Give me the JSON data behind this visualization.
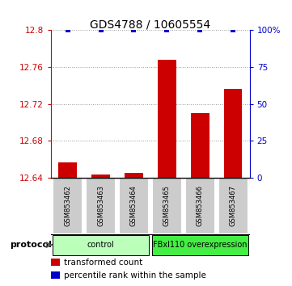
{
  "title": "GDS4788 / 10605554",
  "samples": [
    "GSM853462",
    "GSM853463",
    "GSM853464",
    "GSM853465",
    "GSM853466",
    "GSM853467"
  ],
  "transformed_count": [
    12.657,
    12.643,
    12.645,
    12.768,
    12.71,
    12.736
  ],
  "percentile_rank": [
    100,
    100,
    100,
    100,
    100,
    100
  ],
  "ylim_left": [
    12.64,
    12.8
  ],
  "ylim_right": [
    0,
    100
  ],
  "yticks_left": [
    12.64,
    12.68,
    12.72,
    12.76,
    12.8
  ],
  "yticks_right": [
    0,
    25,
    50,
    75,
    100
  ],
  "ytick_labels_left": [
    "12.64",
    "12.68",
    "12.72",
    "12.76",
    "12.8"
  ],
  "ytick_labels_right": [
    "0",
    "25",
    "50",
    "75",
    "100%"
  ],
  "baseline": 12.64,
  "bar_color": "#cc0000",
  "dot_color": "#0000cc",
  "groups": [
    {
      "label": "control",
      "samples": [
        0,
        1,
        2
      ],
      "color": "#bbffbb"
    },
    {
      "label": "FBxl110 overexpression",
      "samples": [
        3,
        4,
        5
      ],
      "color": "#44ee44"
    }
  ],
  "protocol_label": "protocol",
  "legend_items": [
    {
      "color": "#cc0000",
      "label": "transformed count"
    },
    {
      "color": "#0000cc",
      "label": "percentile rank within the sample"
    }
  ],
  "background_color": "#ffffff",
  "sample_box_color": "#cccccc",
  "grid_color": "#888888",
  "title_color": "#000000",
  "left_axis_color": "#cc0000",
  "right_axis_color": "#0000cc"
}
